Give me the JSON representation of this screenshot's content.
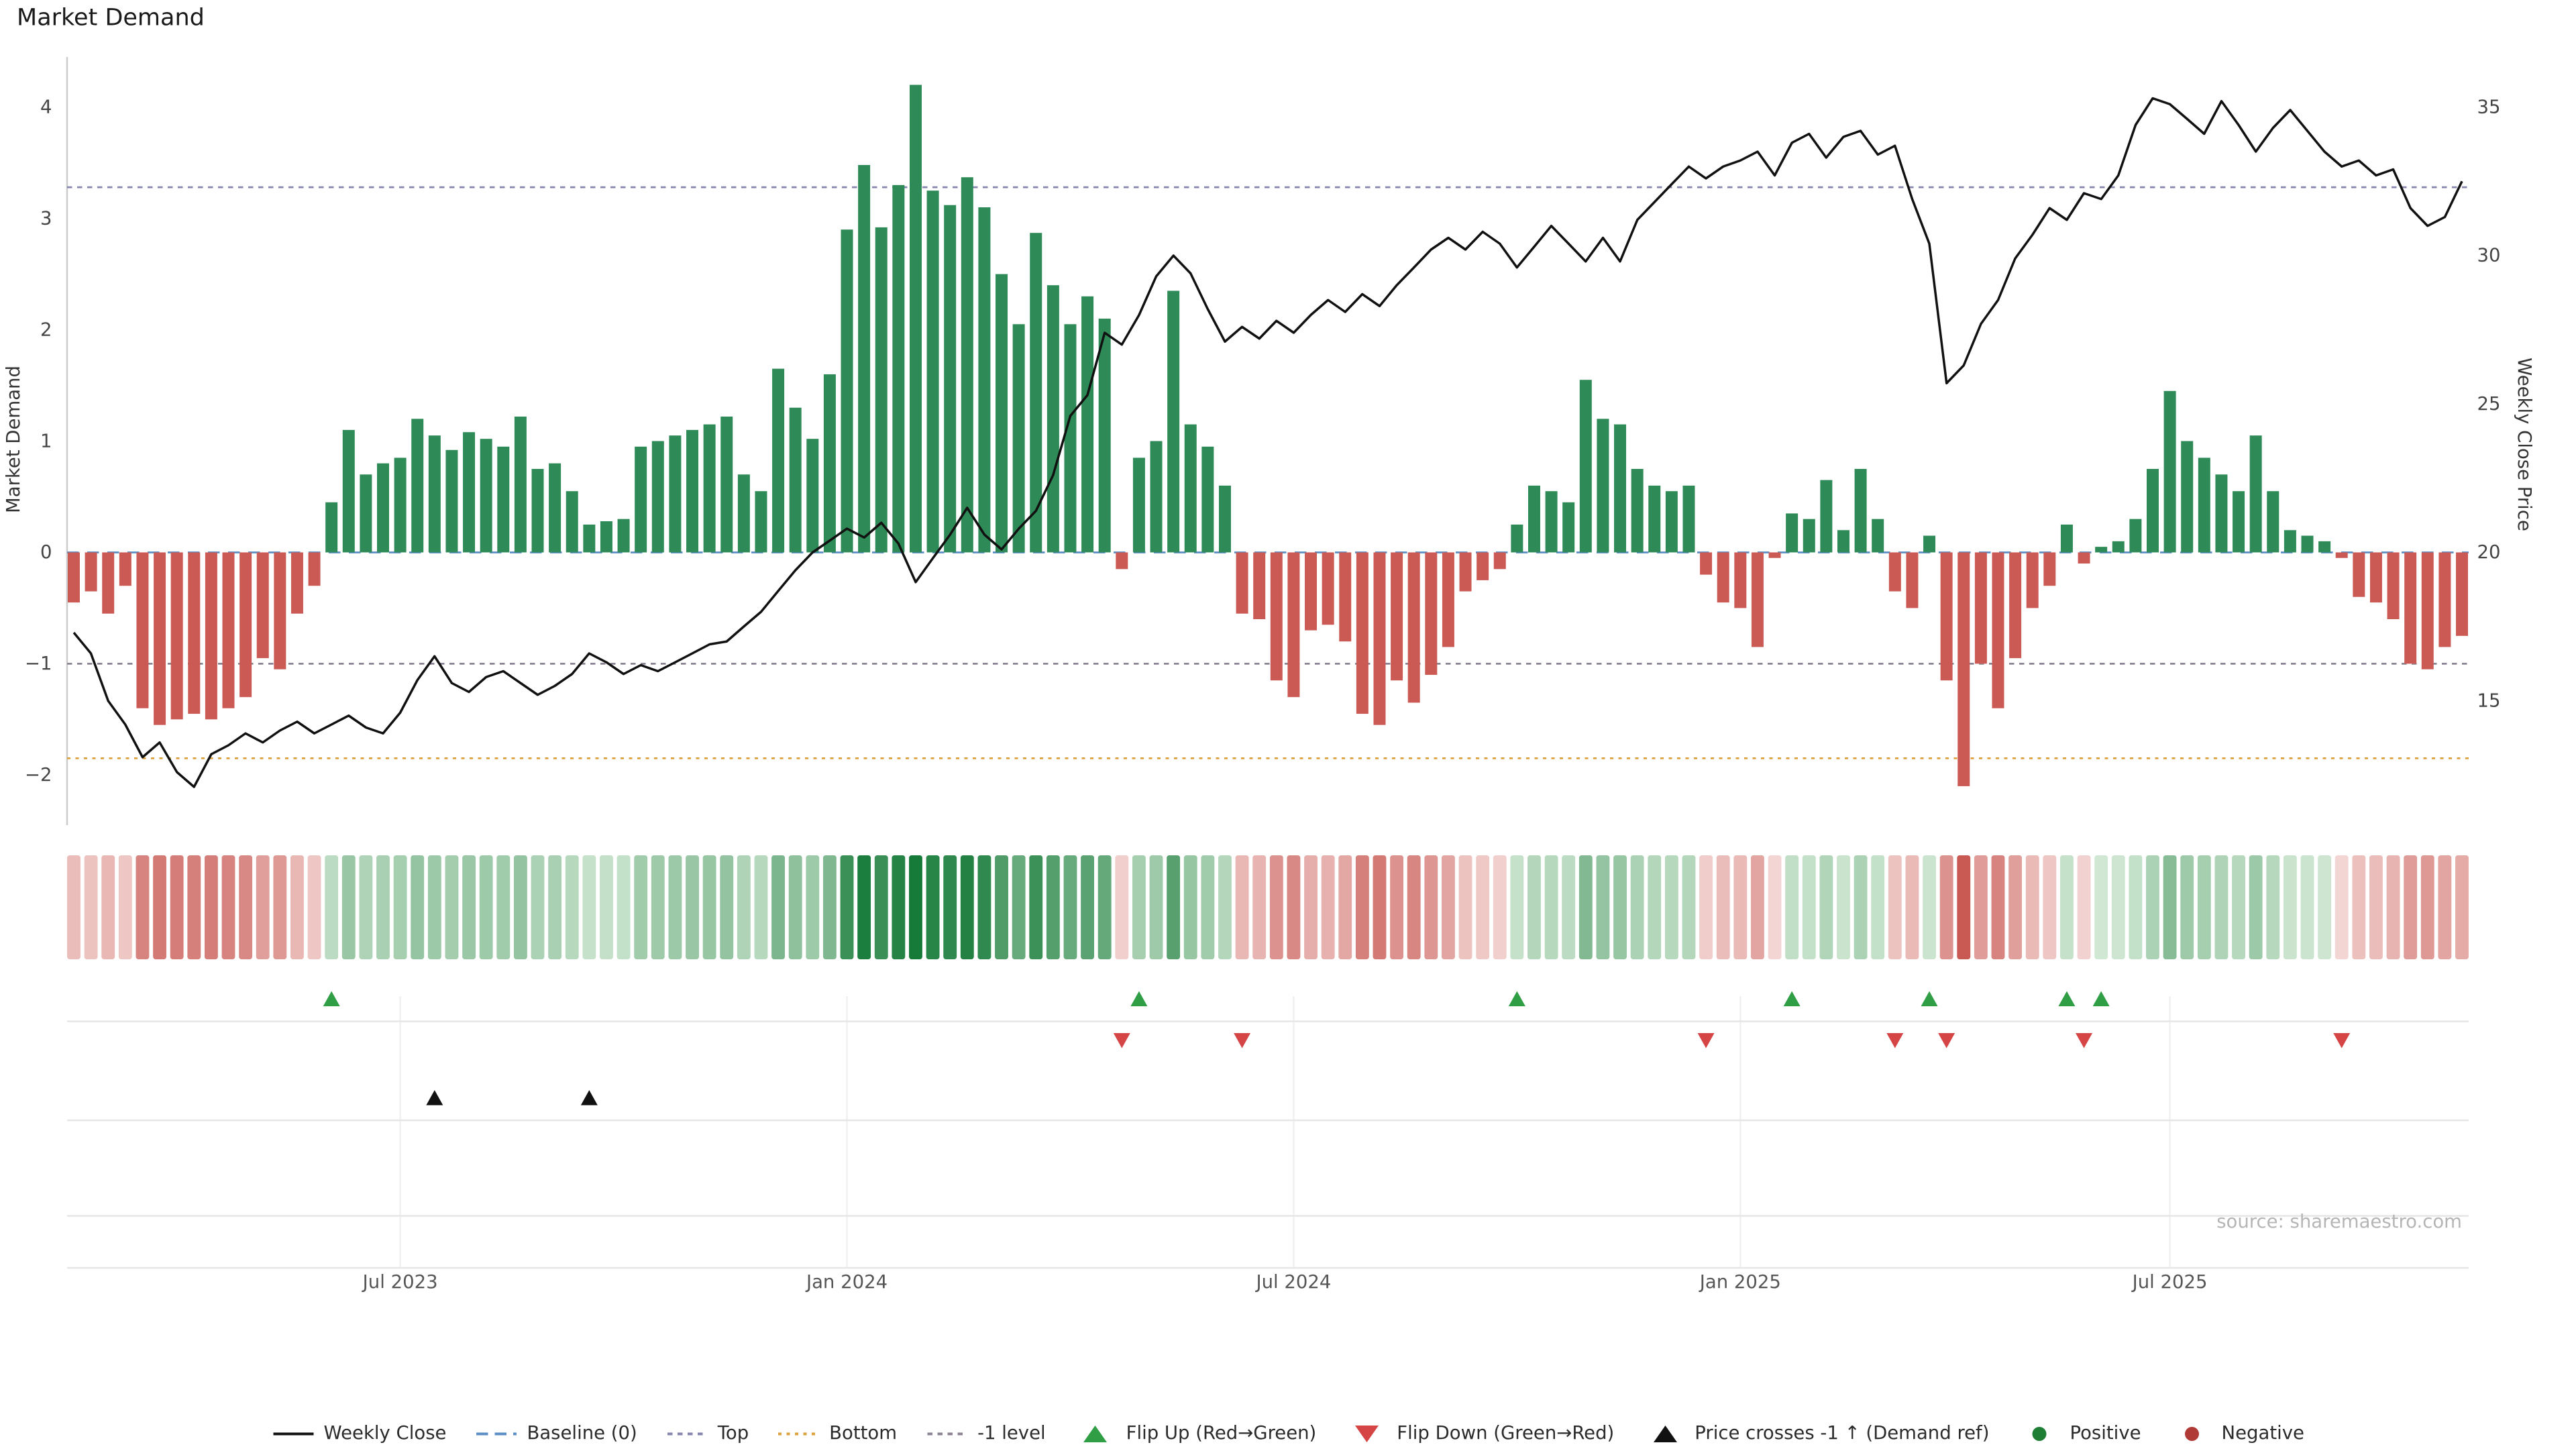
{
  "title": "Market Demand",
  "source": "source: sharemaestro.com",
  "chart_data": {
    "type": "combo",
    "title": "Market Demand",
    "left_axis": {
      "label": "Market Demand",
      "ticks": [
        4,
        3,
        2,
        1,
        0,
        -1,
        -2
      ],
      "range": [
        -2.45,
        4.45
      ]
    },
    "right_axis": {
      "label": "Weekly Close Price",
      "ticks": [
        35,
        30,
        25,
        20,
        15
      ]
    },
    "x_ticks": [
      {
        "label": "Jul 2023",
        "index": 19
      },
      {
        "label": "Jan 2024",
        "index": 45
      },
      {
        "label": "Jul 2024",
        "index": 71
      },
      {
        "label": "Jan 2025",
        "index": 97
      },
      {
        "label": "Jul 2025",
        "index": 122
      }
    ],
    "reference_lines": {
      "baseline": 0,
      "top": 3.28,
      "bottom": -1.85,
      "minus_one_level": -1
    },
    "series": [
      {
        "name": "Market Demand",
        "type": "bar",
        "axis": "left",
        "values": [
          -0.45,
          -0.35,
          -0.55,
          -0.3,
          -1.4,
          -1.55,
          -1.5,
          -1.45,
          -1.5,
          -1.4,
          -1.3,
          -0.95,
          -1.05,
          -0.55,
          -0.3,
          0.45,
          1.1,
          0.7,
          0.8,
          0.85,
          1.2,
          1.05,
          0.92,
          1.08,
          1.02,
          0.95,
          1.22,
          0.75,
          0.8,
          0.55,
          0.25,
          0.28,
          0.3,
          0.95,
          1.0,
          1.05,
          1.1,
          1.15,
          1.22,
          0.7,
          0.55,
          1.65,
          1.3,
          1.02,
          1.6,
          2.9,
          3.48,
          2.92,
          3.3,
          4.2,
          3.25,
          3.12,
          3.37,
          3.1,
          2.5,
          2.05,
          2.87,
          2.4,
          2.05,
          2.3,
          2.1,
          -0.15,
          0.85,
          1.0,
          2.35,
          1.15,
          0.95,
          0.6,
          -0.55,
          -0.6,
          -1.15,
          -1.3,
          -0.7,
          -0.65,
          -0.8,
          -1.45,
          -1.55,
          -1.15,
          -1.35,
          -1.1,
          -0.85,
          -0.35,
          -0.25,
          -0.15,
          0.25,
          0.6,
          0.55,
          0.45,
          1.55,
          1.2,
          1.15,
          0.75,
          0.6,
          0.55,
          0.6,
          -0.2,
          -0.45,
          -0.5,
          -0.85,
          -0.05,
          0.35,
          0.3,
          0.65,
          0.2,
          0.75,
          0.3,
          -0.35,
          -0.5,
          0.15,
          -1.15,
          -2.1,
          -1.0,
          -1.4,
          -0.95,
          -0.5,
          -0.3,
          0.25,
          -0.1,
          0.05,
          0.1,
          0.3,
          0.75,
          1.45,
          1.0,
          0.85,
          0.7,
          0.55,
          1.05,
          0.55,
          0.2,
          0.15,
          0.1,
          -0.05,
          -0.4,
          -0.45,
          -0.6,
          -1.0,
          -1.05,
          -0.85,
          -0.75
        ]
      },
      {
        "name": "Weekly Close",
        "type": "line",
        "axis": "right",
        "values": [
          17.3,
          16.6,
          15.0,
          14.2,
          13.1,
          13.6,
          12.6,
          12.1,
          13.2,
          13.5,
          13.9,
          13.6,
          14.0,
          14.3,
          13.9,
          14.2,
          14.5,
          14.1,
          13.9,
          14.6,
          15.7,
          16.5,
          15.6,
          15.3,
          15.8,
          16.0,
          15.6,
          15.2,
          15.5,
          15.9,
          16.6,
          16.3,
          15.9,
          16.2,
          16.0,
          16.3,
          16.6,
          16.9,
          17.0,
          17.5,
          18.0,
          18.7,
          19.4,
          20.0,
          20.4,
          20.8,
          20.5,
          21.0,
          20.3,
          19.0,
          19.8,
          20.6,
          21.5,
          20.6,
          20.1,
          20.8,
          21.4,
          22.6,
          24.6,
          25.3,
          27.4,
          27.0,
          28.0,
          29.3,
          30.0,
          29.4,
          28.2,
          27.1,
          27.6,
          27.2,
          27.8,
          27.4,
          28.0,
          28.5,
          28.1,
          28.7,
          28.3,
          29.0,
          29.6,
          30.2,
          30.6,
          30.2,
          30.8,
          30.4,
          29.6,
          30.3,
          31.0,
          30.4,
          29.8,
          30.6,
          29.8,
          31.2,
          31.8,
          32.4,
          33.0,
          32.6,
          33.0,
          33.2,
          33.5,
          32.7,
          33.8,
          34.1,
          33.3,
          34.0,
          34.2,
          33.4,
          33.7,
          31.9,
          30.4,
          25.7,
          26.3,
          27.7,
          28.5,
          29.9,
          30.7,
          31.6,
          31.2,
          32.1,
          31.9,
          32.7,
          34.4,
          35.3,
          35.1,
          34.6,
          34.1,
          35.2,
          34.4,
          33.5,
          34.3,
          34.9,
          34.2,
          33.5,
          33.0,
          33.2,
          32.7,
          32.9,
          31.6,
          31.0,
          31.3,
          32.5
        ]
      }
    ],
    "markers": {
      "flip_up_indices": [
        15,
        62,
        84,
        100,
        108,
        116,
        118
      ],
      "flip_down_indices": [
        61,
        68,
        95,
        106,
        109,
        117,
        132
      ],
      "price_cross_minus1_indices": [
        21,
        30
      ]
    },
    "heatmap": {
      "derived_from": "Market Demand"
    },
    "colors": {
      "positive_bar": "#2e8b57",
      "negative_bar": "#cb5a55",
      "price_line": "#111111",
      "baseline": "#5b8ec4",
      "top_line": "#8585ad",
      "bottom_line": "#dda23e",
      "minus_one_line": "#8c8494",
      "flip_up": "#2f9e44",
      "flip_down": "#d64545",
      "price_cross": "#111111",
      "positive_dot": "#1e7e34",
      "negative_dot": "#b03a36"
    }
  },
  "legend": {
    "items": [
      {
        "label": "Weekly Close",
        "swatch": "line",
        "color": "#111111",
        "dash": ""
      },
      {
        "label": "Baseline (0)",
        "swatch": "line",
        "color": "#5b8ec4",
        "dash": "7 4"
      },
      {
        "label": "Top",
        "swatch": "line",
        "color": "#8585ad",
        "dash": "3 3"
      },
      {
        "label": "Bottom",
        "swatch": "line",
        "color": "#dda23e",
        "dash": "2 3"
      },
      {
        "label": "-1 level",
        "swatch": "line",
        "color": "#8c8494",
        "dash": "3 3"
      },
      {
        "label": "Flip Up (Red→Green)",
        "swatch": "triangle-up",
        "color": "#2f9e44",
        "dash": ""
      },
      {
        "label": "Flip Down (Green→Red)",
        "swatch": "triangle-down",
        "color": "#d64545",
        "dash": ""
      },
      {
        "label": "Price crosses -1 ↑ (Demand ref)",
        "swatch": "triangle-up",
        "color": "#111111",
        "dash": ""
      },
      {
        "label": "Positive",
        "swatch": "dot",
        "color": "#1e7e34",
        "dash": ""
      },
      {
        "label": "Negative",
        "swatch": "dot",
        "color": "#b03a36",
        "dash": ""
      }
    ]
  }
}
